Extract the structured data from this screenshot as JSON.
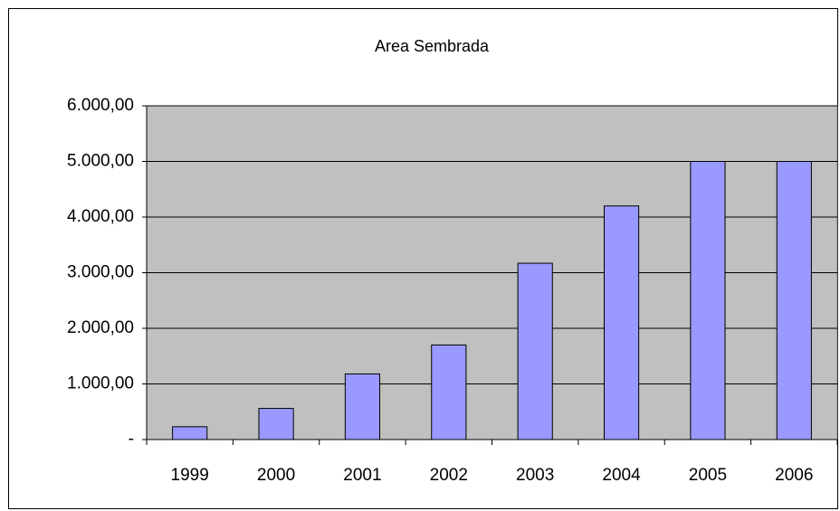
{
  "chart_data": {
    "type": "bar",
    "title": "Area Sembrada",
    "categories": [
      "1999",
      "2000",
      "2001",
      "2002",
      "2003",
      "2004",
      "2005",
      "2006"
    ],
    "values": [
      230,
      560,
      1180,
      1700,
      3170,
      4200,
      5000,
      5000
    ],
    "color": "#9999ff",
    "ylim": [
      0,
      6000
    ],
    "yticks": [
      {
        "value": 0,
        "label": "-"
      },
      {
        "value": 1000,
        "label": "1.000,00"
      },
      {
        "value": 2000,
        "label": "2.000,00"
      },
      {
        "value": 3000,
        "label": "3.000,00"
      },
      {
        "value": 4000,
        "label": "4.000,00"
      },
      {
        "value": 5000,
        "label": "5.000,00"
      },
      {
        "value": 6000,
        "label": "6.000,00"
      }
    ],
    "grid": true
  }
}
